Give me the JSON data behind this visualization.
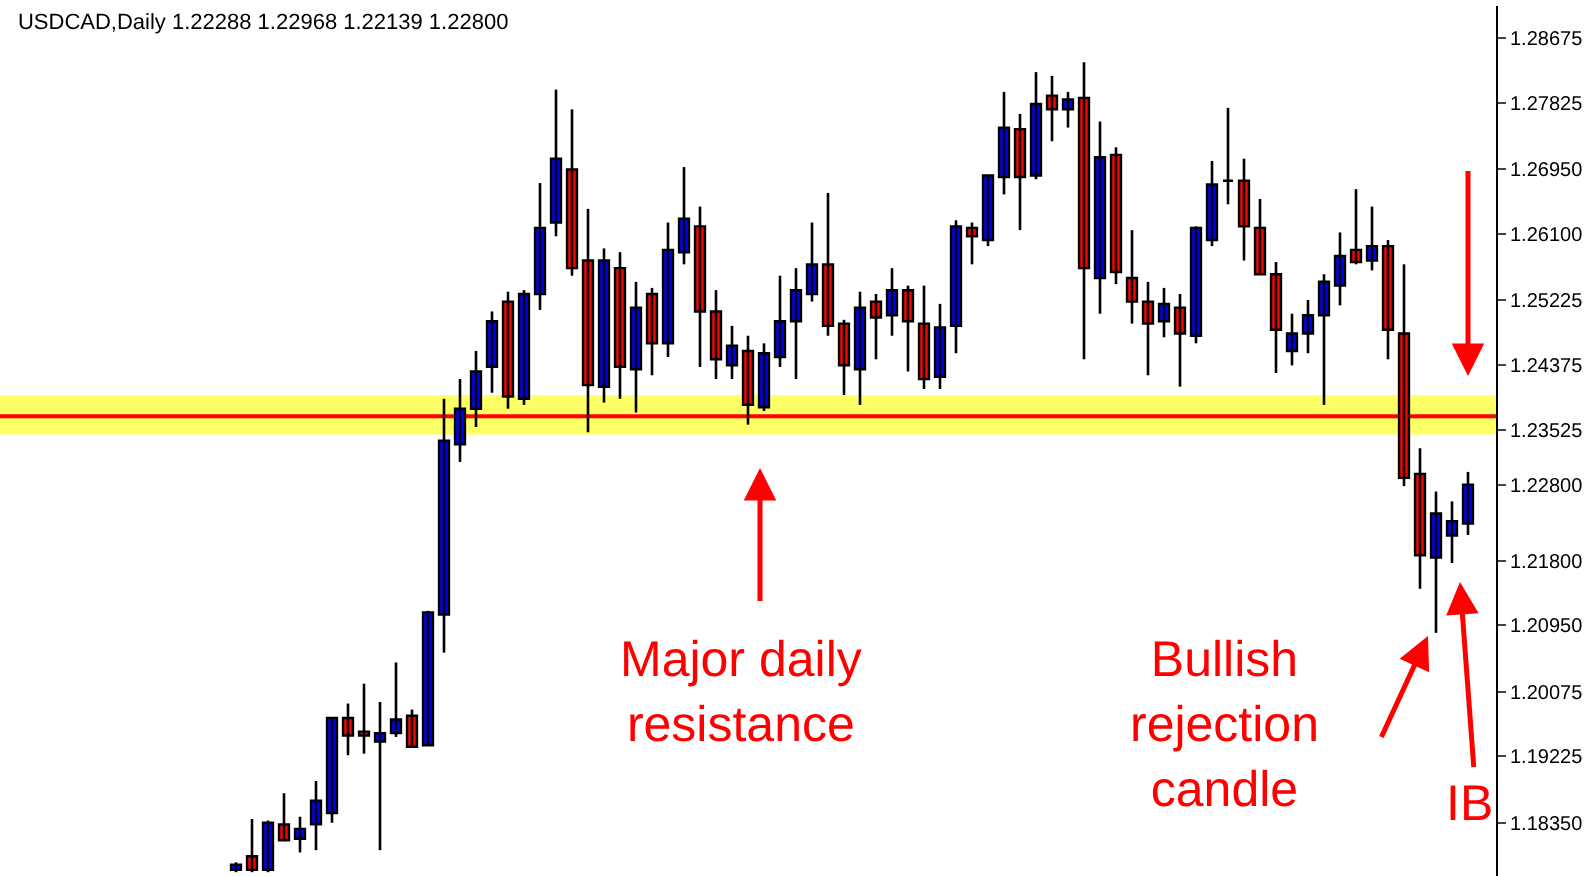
{
  "chart_data": {
    "type": "candlestick",
    "title": "USDCAD,Daily 1.22288 1.22968 1.22139 1.22800",
    "categories": [
      null,
      null,
      null,
      null,
      null,
      null,
      null,
      null,
      null,
      null,
      null,
      null,
      null,
      null,
      null,
      null,
      null,
      null,
      null,
      null,
      null,
      null,
      null,
      null,
      null,
      null,
      null,
      null,
      null,
      null,
      null,
      null,
      null,
      null,
      null,
      null,
      null,
      null,
      null,
      null,
      null,
      null,
      null,
      null,
      null,
      null,
      null,
      null,
      null,
      null,
      null,
      null,
      null,
      null,
      null,
      null,
      null,
      null,
      null,
      null,
      null,
      null,
      null,
      null,
      null,
      null,
      null,
      null,
      null,
      null,
      null,
      null,
      null,
      null,
      null,
      null,
      null,
      null
    ],
    "ohlc": [
      [
        1.1773,
        1.1783,
        1.177,
        1.178
      ],
      [
        1.1791,
        1.184,
        1.177,
        1.1773
      ],
      [
        1.1773,
        1.1838,
        1.177,
        1.1835
      ],
      [
        1.1833,
        1.1874,
        1.1812,
        1.1812
      ],
      [
        1.1814,
        1.1843,
        1.1796,
        1.1827
      ],
      [
        1.1833,
        1.189,
        1.1799,
        1.1864
      ],
      [
        1.1848,
        1.1973,
        1.1835,
        1.1973
      ],
      [
        1.1973,
        1.1992,
        1.1924,
        1.195
      ],
      [
        1.1955,
        1.2018,
        1.1926,
        1.195
      ],
      [
        1.1942,
        1.1994,
        1.1799,
        1.1953
      ],
      [
        1.1953,
        1.2046,
        1.1948,
        1.1971
      ],
      [
        1.1976,
        1.1984,
        1.1935,
        1.1935
      ],
      [
        1.1937,
        1.2114,
        1.1937,
        1.2112
      ],
      [
        1.2109,
        1.2393,
        1.2059,
        1.2338
      ],
      [
        1.2333,
        1.2419,
        1.231,
        1.238
      ],
      [
        1.238,
        1.2456,
        1.2356,
        1.2429
      ],
      [
        1.2435,
        1.2508,
        1.2401,
        1.2495
      ],
      [
        1.2521,
        1.2534,
        1.238,
        1.2396
      ],
      [
        1.2393,
        1.2536,
        1.2385,
        1.2531
      ],
      [
        1.2531,
        1.2677,
        1.251,
        1.2618
      ],
      [
        1.2625,
        1.28,
        1.2607,
        1.2709
      ],
      [
        1.2695,
        1.2774,
        1.2555,
        1.2565
      ],
      [
        1.2575,
        1.2643,
        1.2349,
        1.2411
      ],
      [
        1.2409,
        1.2591,
        1.2388,
        1.2575
      ],
      [
        1.2565,
        1.2586,
        1.2393,
        1.2435
      ],
      [
        1.2432,
        1.2547,
        1.2375,
        1.2513
      ],
      [
        1.2531,
        1.2539,
        1.2424,
        1.2466
      ],
      [
        1.2466,
        1.2625,
        1.2448,
        1.2589
      ],
      [
        1.2586,
        1.2698,
        1.257,
        1.263
      ],
      [
        1.262,
        1.2646,
        1.2435,
        1.2508
      ],
      [
        1.2508,
        1.2536,
        1.2419,
        1.2445
      ],
      [
        1.2437,
        1.2489,
        1.2419,
        1.2463
      ],
      [
        1.2456,
        1.2476,
        1.2359,
        1.2385
      ],
      [
        1.2382,
        1.2466,
        1.2377,
        1.2453
      ],
      [
        1.2448,
        1.2555,
        1.2435,
        1.2495
      ],
      [
        1.2495,
        1.2565,
        1.2419,
        1.2536
      ],
      [
        1.2531,
        1.2625,
        1.2521,
        1.257
      ],
      [
        1.257,
        1.2664,
        1.2476,
        1.2489
      ],
      [
        1.2492,
        1.2497,
        1.2398,
        1.2437
      ],
      [
        1.2432,
        1.2534,
        1.2385,
        1.2513
      ],
      [
        1.2521,
        1.2531,
        1.2445,
        1.25
      ],
      [
        1.2503,
        1.2565,
        1.2476,
        1.2536
      ],
      [
        1.2536,
        1.2542,
        1.2429,
        1.2495
      ],
      [
        1.2492,
        1.2542,
        1.2406,
        1.2419
      ],
      [
        1.2422,
        1.2518,
        1.2406,
        1.2487
      ],
      [
        1.2489,
        1.2628,
        1.2453,
        1.262
      ],
      [
        1.2618,
        1.2625,
        1.257,
        1.2607
      ],
      [
        1.2602,
        1.2687,
        1.2594,
        1.2687
      ],
      [
        1.2685,
        1.2797,
        1.2662,
        1.275
      ],
      [
        1.2748,
        1.2768,
        1.2615,
        1.2685
      ],
      [
        1.2687,
        1.2823,
        1.2682,
        1.2781
      ],
      [
        1.2792,
        1.2818,
        1.2732,
        1.2774
      ],
      [
        1.2774,
        1.2797,
        1.275,
        1.2787
      ],
      [
        1.2789,
        1.2836,
        1.2445,
        1.2565
      ],
      [
        1.2552,
        1.2758,
        1.2505,
        1.2711
      ],
      [
        1.2714,
        1.2724,
        1.2544,
        1.256
      ],
      [
        1.2552,
        1.2615,
        1.2492,
        1.2521
      ],
      [
        1.2521,
        1.2547,
        1.2424,
        1.2492
      ],
      [
        1.2495,
        1.2539,
        1.2474,
        1.2518
      ],
      [
        1.2513,
        1.2531,
        1.2409,
        1.2479
      ],
      [
        1.2476,
        1.262,
        1.2466,
        1.2618
      ],
      [
        1.2602,
        1.2706,
        1.2594,
        1.2675
      ],
      [
        1.268,
        1.2776,
        1.2649,
        1.268
      ],
      [
        1.268,
        1.2709,
        1.2575,
        1.262
      ],
      [
        1.2618,
        1.2656,
        1.2557,
        1.2557
      ],
      [
        1.2557,
        1.2573,
        1.2427,
        1.2484
      ],
      [
        1.2456,
        1.2505,
        1.2437,
        1.2479
      ],
      [
        1.2479,
        1.2523,
        1.2453,
        1.2503
      ],
      [
        1.2503,
        1.2557,
        1.2385,
        1.2547
      ],
      [
        1.2542,
        1.2612,
        1.2516,
        1.2581
      ],
      [
        1.2589,
        1.2669,
        1.257,
        1.2573
      ],
      [
        1.2575,
        1.2646,
        1.2562,
        1.2594
      ],
      [
        1.2594,
        1.2602,
        1.2445,
        1.2484
      ],
      [
        1.2479,
        1.257,
        1.2278,
        1.2289
      ],
      [
        1.2294,
        1.2328,
        1.2143,
        1.2187
      ],
      [
        1.2184,
        1.2271,
        1.2085,
        1.2242
      ],
      [
        1.2213,
        1.2258,
        1.2177,
        1.2232
      ],
      [
        1.22288,
        1.22968,
        1.22139,
        1.228
      ]
    ],
    "ylim": [
      1.1765,
      1.291
    ],
    "yticks": [
      1.28675,
      1.27825,
      {
        "value": 1.2695,
        "label": "1.26950"
      },
      {
        "value": 1.261,
        "label": "1.26100"
      },
      1.25225,
      1.24375,
      1.23525,
      {
        "value": 1.228,
        "label": "1.22800"
      },
      {
        "value": 1.218,
        "label": "1.21800"
      },
      {
        "value": 1.2095,
        "label": "1.20950"
      },
      1.20075,
      1.19225,
      {
        "value": 1.1835,
        "label": "1.18350"
      }
    ],
    "ref_lines": [
      {
        "axis": "y",
        "value": 1.237,
        "color": "#ff0000"
      }
    ],
    "bands": [
      {
        "axis": "y",
        "from": 1.2346,
        "to": 1.2398,
        "color": "#ffff66"
      }
    ],
    "annotations": [
      "Major daily\nresistance",
      "Bullish\nrejection\ncandle",
      "IB"
    ],
    "grid": false,
    "tick_labels": "y"
  }
}
